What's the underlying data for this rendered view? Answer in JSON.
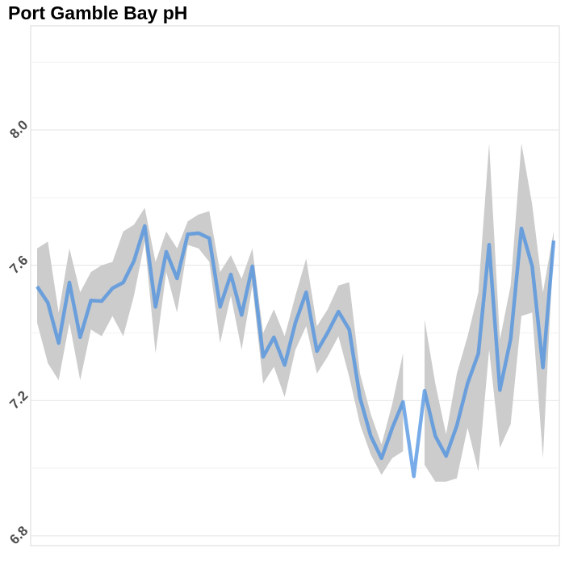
{
  "chart_data": {
    "type": "line",
    "title": "Port Gamble Bay pH",
    "categories": [
      null,
      null,
      null,
      null,
      null,
      null,
      null,
      null,
      null,
      null,
      null,
      null,
      null,
      null,
      null,
      null,
      null,
      null,
      null,
      null,
      null,
      null,
      null,
      null,
      null,
      null,
      null,
      null,
      null,
      null,
      null,
      null,
      null,
      null,
      null,
      null,
      null,
      null,
      null,
      null,
      null,
      null,
      null,
      null,
      null,
      null,
      null,
      null,
      null
    ],
    "values": [
      7.537,
      7.489,
      7.37,
      7.549,
      7.387,
      7.496,
      7.494,
      7.532,
      7.549,
      7.613,
      7.716,
      7.477,
      7.64,
      7.561,
      7.692,
      7.695,
      7.68,
      7.477,
      7.573,
      7.453,
      7.597,
      7.329,
      7.387,
      7.305,
      7.43,
      7.52,
      7.346,
      7.401,
      7.463,
      7.41,
      7.208,
      7.095,
      7.029,
      7.119,
      7.196,
      6.976,
      7.229,
      7.095,
      7.036,
      7.126,
      7.251,
      7.339,
      7.661,
      7.231,
      7.382,
      7.709,
      7.597,
      7.298,
      7.673
    ],
    "upper": [
      7.65,
      7.67,
      7.46,
      7.65,
      7.52,
      7.58,
      7.6,
      7.61,
      7.7,
      7.72,
      7.77,
      7.61,
      7.7,
      7.65,
      7.73,
      7.75,
      7.76,
      7.58,
      7.63,
      7.56,
      7.65,
      7.4,
      7.47,
      7.39,
      7.51,
      7.62,
      7.42,
      7.47,
      7.54,
      7.55,
      7.28,
      7.16,
      7.07,
      7.19,
      7.34,
      null,
      7.44,
      7.25,
      7.1,
      7.28,
      7.39,
      7.52,
      7.96,
      7.38,
      7.54,
      7.96,
      7.78,
      7.52,
      7.7
    ],
    "lower": [
      7.43,
      7.31,
      7.26,
      7.43,
      7.26,
      7.41,
      7.39,
      7.45,
      7.39,
      7.51,
      7.67,
      7.34,
      7.58,
      7.46,
      7.66,
      7.65,
      7.61,
      7.37,
      7.51,
      7.35,
      7.54,
      7.25,
      7.3,
      7.21,
      7.35,
      7.42,
      7.28,
      7.33,
      7.39,
      7.27,
      7.13,
      7.04,
      6.98,
      7.03,
      7.05,
      null,
      7.01,
      6.96,
      6.96,
      6.97,
      7.12,
      6.99,
      7.35,
      7.06,
      7.13,
      7.45,
      7.46,
      7.03,
      7.67
    ],
    "color": "#4a90e2",
    "band_color": "#cccccc",
    "ylim": [
      6.771,
      8.308
    ],
    "yticks": [
      {
        "value": 6.8,
        "label": "6.8"
      },
      {
        "value": 7.2,
        "label": "7.2"
      },
      {
        "value": 7.6,
        "label": "7.6"
      },
      {
        "value": 8.0,
        "label": "8.0"
      }
    ],
    "minor_yticks": [
      7.0,
      7.4,
      7.8,
      8.2
    ],
    "grid": true
  }
}
